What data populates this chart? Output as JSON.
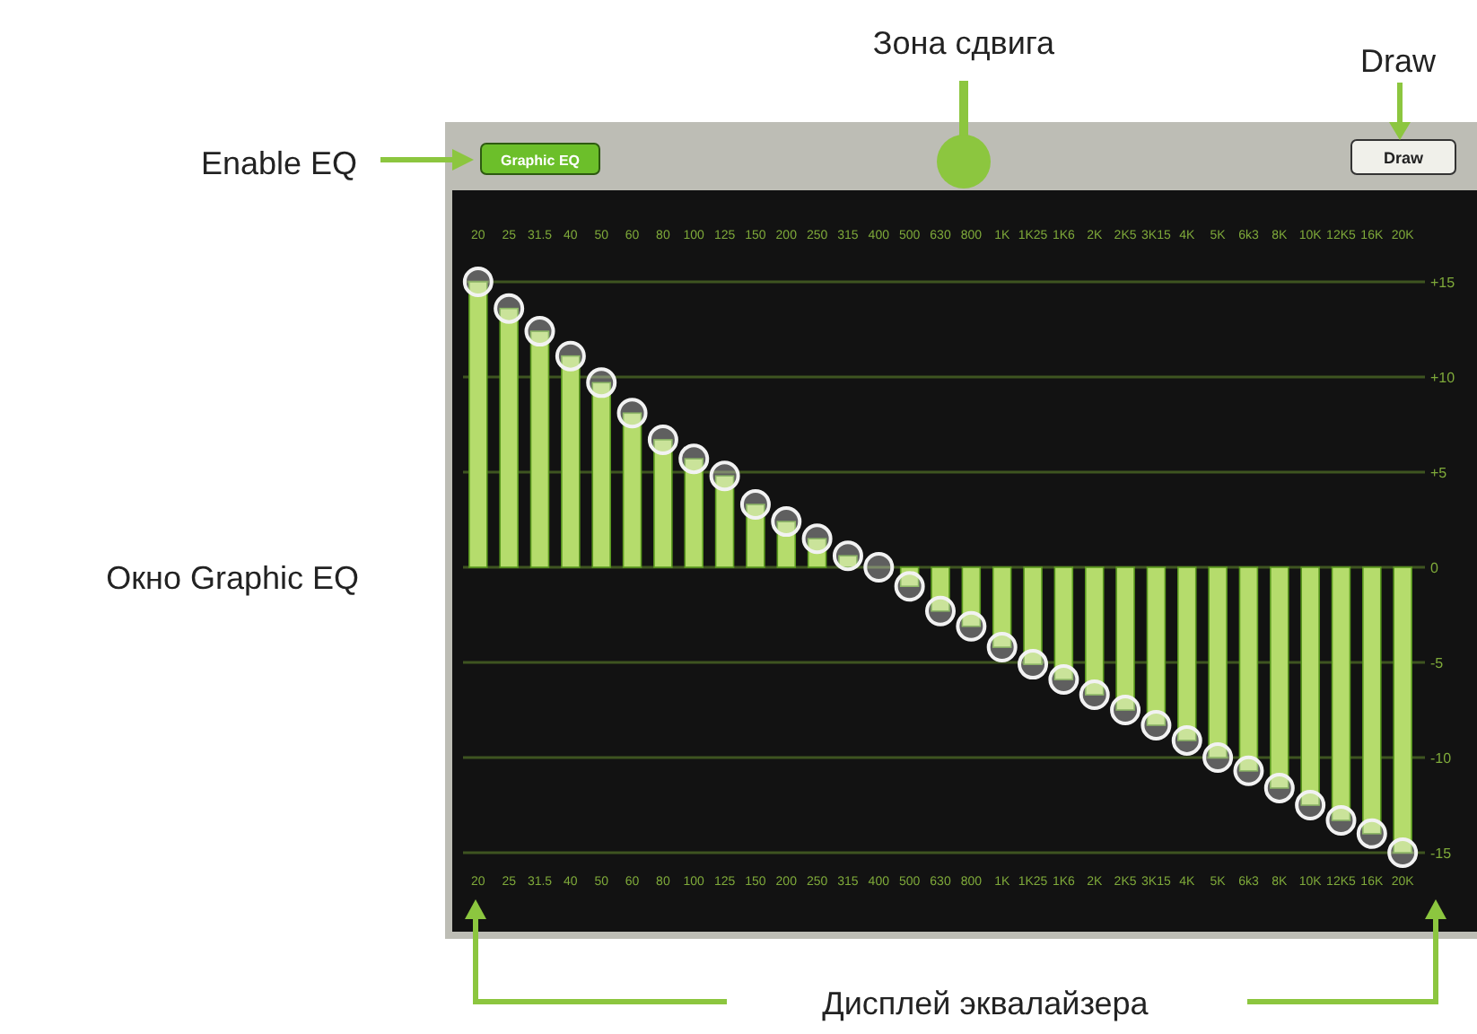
{
  "chart_data": {
    "type": "bar",
    "annotations": [
      "Зона сдвига",
      "Draw",
      "Enable EQ",
      "Окно Graphic EQ",
      "Дисплей эквалайзера",
      "Graphic EQ",
      "Draw"
    ],
    "categories": [
      "20",
      "25",
      "31.5",
      "40",
      "50",
      "60",
      "80",
      "100",
      "125",
      "150",
      "200",
      "250",
      "315",
      "400",
      "500",
      "630",
      "800",
      "1K",
      "1K25",
      "1K6",
      "2K",
      "2K5",
      "3K15",
      "4K",
      "5K",
      "6k3",
      "8K",
      "10K",
      "12K5",
      "16K",
      "20K"
    ],
    "series": [
      {
        "color": "#b5dc6c",
        "values": [
          15,
          13.6,
          12.4,
          11.1,
          9.7,
          8.1,
          6.7,
          5.7,
          4.8,
          3.3,
          2.4,
          1.5,
          0.6,
          0,
          -1.0,
          -2.3,
          -3.1,
          -4.2,
          -5.1,
          -5.9,
          -6.7,
          -7.5,
          -8.3,
          -9.1,
          -10.0,
          -10.7,
          -11.6,
          -12.5,
          -13.3,
          -14.0,
          -15
        ]
      },
      {
        "type": "scatter",
        "color": "#f2f2f2",
        "marker": "circle",
        "x": [
          "20",
          "25",
          "31.5",
          "40",
          "50",
          "60",
          "80",
          "100",
          "125",
          "150",
          "200",
          "250",
          "315",
          "400",
          "500",
          "630",
          "800",
          "1K",
          "1K25",
          "1K6",
          "2K",
          "2K5",
          "3K15",
          "4K",
          "5K",
          "6k3",
          "8K",
          "10K",
          "12K5",
          "16K",
          "20K"
        ],
        "values": [
          15,
          13.6,
          12.4,
          11.1,
          9.7,
          8.1,
          6.7,
          5.7,
          4.8,
          3.3,
          2.4,
          1.5,
          0.6,
          0,
          -1.0,
          -2.3,
          -3.1,
          -4.2,
          -5.1,
          -5.9,
          -6.7,
          -7.5,
          -8.3,
          -9.1,
          -10.0,
          -10.7,
          -11.6,
          -12.5,
          -13.3,
          -14.0,
          -15
        ]
      }
    ],
    "ylim": [
      -15,
      15
    ],
    "yticks": [
      {
        "value": 15,
        "label": "+15"
      },
      {
        "value": 10,
        "label": "+10"
      },
      {
        "value": 5,
        "label": "+5"
      },
      0,
      -5,
      -10,
      -15
    ],
    "grid": "y",
    "legend": false
  }
}
